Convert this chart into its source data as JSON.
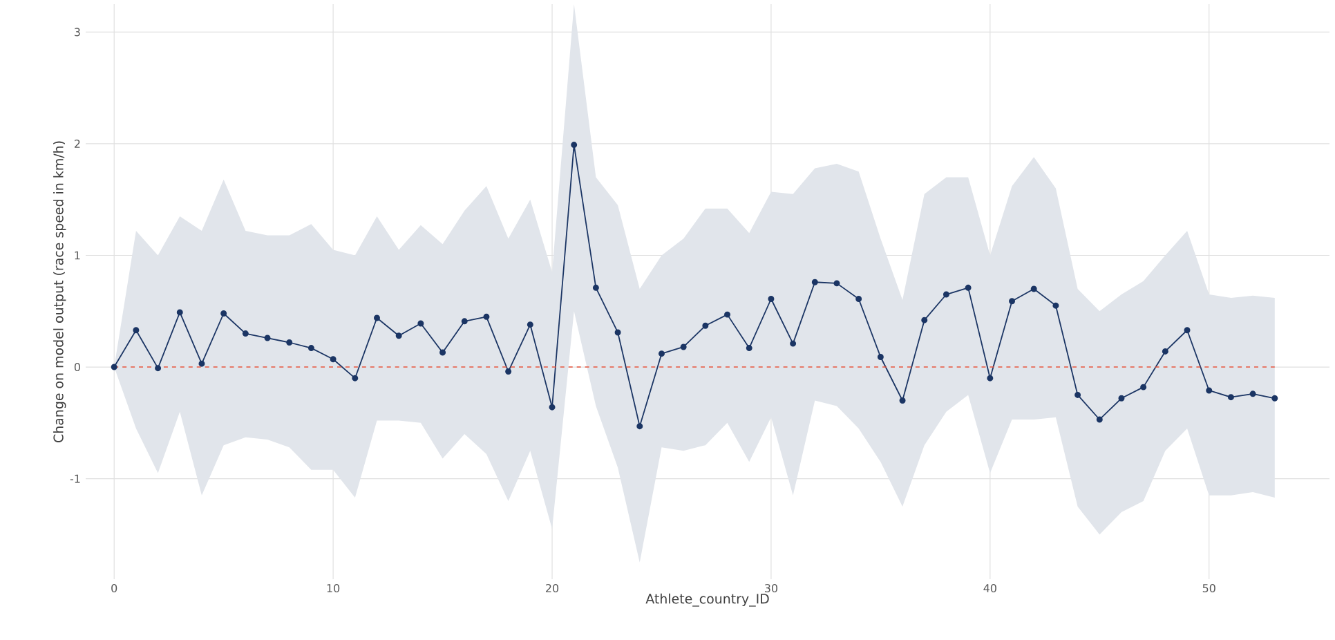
{
  "chart_data": {
    "type": "line",
    "xlabel": "Athlete_country_ID",
    "ylabel": "Change on model output (race speed in km/h)",
    "x": [
      0,
      1,
      2,
      3,
      4,
      5,
      6,
      7,
      8,
      9,
      10,
      11,
      12,
      13,
      14,
      15,
      16,
      17,
      18,
      19,
      20,
      21,
      22,
      23,
      24,
      25,
      26,
      27,
      28,
      29,
      30,
      31,
      32,
      33,
      34,
      35,
      36,
      37,
      38,
      39,
      40,
      41,
      42,
      43,
      44,
      45,
      46,
      47,
      48,
      49,
      50,
      51,
      52,
      53
    ],
    "series": [
      {
        "color": "#1b3564",
        "values": [
          0,
          0.33,
          -0.01,
          0.49,
          0.03,
          0.48,
          0.3,
          0.26,
          0.22,
          0.17,
          0.07,
          -0.1,
          0.44,
          0.28,
          0.39,
          0.13,
          0.41,
          0.45,
          -0.04,
          0.38,
          -0.36,
          1.99,
          0.71,
          0.31,
          -0.53,
          0.12,
          0.18,
          0.37,
          0.47,
          0.17,
          0.61,
          0.21,
          0.76,
          0.75,
          0.61,
          0.09,
          -0.3,
          0.42,
          0.65,
          0.71,
          -0.1,
          0.59,
          0.7,
          0.55,
          -0.25,
          -0.47,
          -0.28,
          -0.18,
          0.14,
          0.33,
          -0.21,
          -0.27,
          -0.24,
          -0.28
        ],
        "upper": [
          0,
          1.22,
          1.0,
          1.35,
          1.22,
          1.68,
          1.22,
          1.18,
          1.18,
          1.28,
          1.05,
          1.0,
          1.35,
          1.05,
          1.27,
          1.1,
          1.4,
          1.62,
          1.15,
          1.5,
          0.85,
          3.25,
          1.7,
          1.45,
          0.7,
          1.0,
          1.15,
          1.42,
          1.42,
          1.2,
          1.57,
          1.55,
          1.78,
          1.82,
          1.75,
          1.15,
          0.6,
          1.55,
          1.7,
          1.7,
          1.0,
          1.62,
          1.88,
          1.6,
          0.7,
          0.5,
          0.65,
          0.77,
          1.0,
          1.22,
          0.65,
          0.62,
          0.64,
          0.62
        ],
        "lower": [
          0,
          -0.55,
          -0.95,
          -0.4,
          -1.15,
          -0.7,
          -0.63,
          -0.65,
          -0.72,
          -0.92,
          -0.92,
          -1.17,
          -0.48,
          -0.48,
          -0.5,
          -0.82,
          -0.6,
          -0.78,
          -1.2,
          -0.75,
          -1.45,
          0.5,
          -0.35,
          -0.9,
          -1.75,
          -0.72,
          -0.75,
          -0.7,
          -0.5,
          -0.85,
          -0.45,
          -1.15,
          -0.3,
          -0.35,
          -0.55,
          -0.85,
          -1.25,
          -0.7,
          -0.4,
          -0.25,
          -0.95,
          -0.47,
          -0.47,
          -0.45,
          -1.25,
          -1.5,
          -1.3,
          -1.2,
          -0.75,
          -0.55,
          -1.15,
          -1.15,
          -1.12,
          -1.17
        ]
      }
    ],
    "xlim": [
      -1.3,
      55.5
    ],
    "ylim": [
      -1.9,
      3.25
    ],
    "xticks": [
      0,
      10,
      20,
      30,
      40,
      50
    ],
    "yticks": [
      -1,
      0,
      1,
      2,
      3
    ],
    "ref_lines": [
      {
        "axis": "y",
        "value": 0,
        "color": "#e8543c",
        "line_style": "dashed"
      }
    ],
    "grid": true,
    "marker": "circle",
    "line_style": "solid"
  }
}
